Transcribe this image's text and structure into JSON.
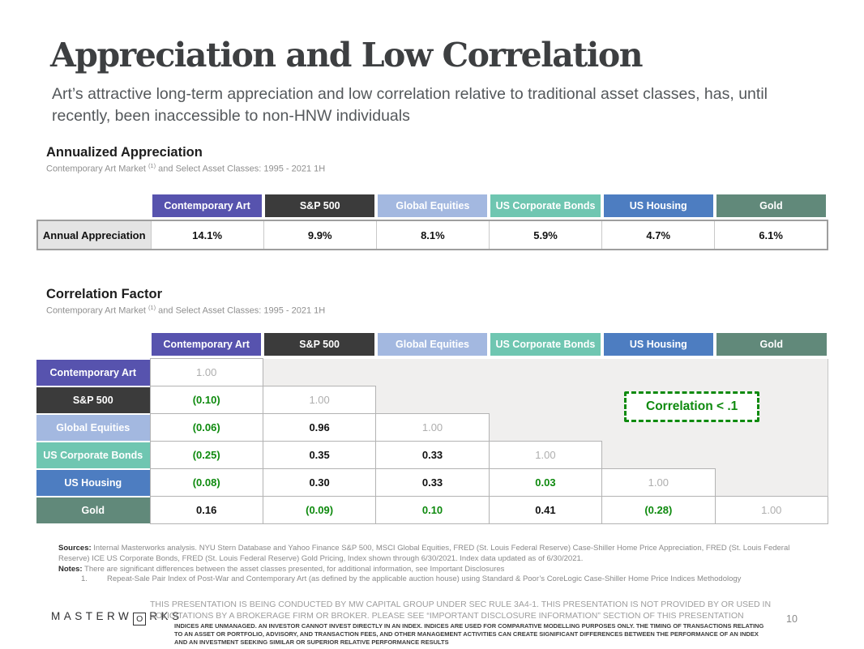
{
  "title": "Appreciation and Low Correlation",
  "subtitle": "Art’s attractive long-term appreciation and low correlation relative to traditional asset classes, has, until recently, been inaccessible to non-HNW individuals",
  "colors": {
    "purple": "#5753ae",
    "dark": "#3b3b3b",
    "lightblue": "#a3b8e0",
    "teal": "#6fc6b1",
    "blue": "#4d7dc1",
    "sage": "#61897a",
    "green_accent": "#0e8a0e",
    "diag_gray": "#aeaeae",
    "empty_bg": "#f0efee"
  },
  "columns": [
    {
      "label": "Contemporary Art",
      "key": "purple"
    },
    {
      "label": "S&P 500",
      "key": "dark"
    },
    {
      "label": "Global Equities",
      "key": "lightblue"
    },
    {
      "label": "US Corporate Bonds",
      "key": "teal"
    },
    {
      "label": "US Housing",
      "key": "blue"
    },
    {
      "label": "Gold",
      "key": "sage"
    }
  ],
  "appreciation": {
    "heading": "Annualized Appreciation",
    "subheading_prefix": "Contemporary Art Market ",
    "subheading_sup": "(1)",
    "subheading_suffix": " and Select Asset Classes: 1995 - 2021 1H",
    "row_label": "Annual Appreciation",
    "values": [
      "14.1%",
      "9.9%",
      "8.1%",
      "5.9%",
      "4.7%",
      "6.1%"
    ]
  },
  "correlation": {
    "heading": "Correlation Factor",
    "subheading_prefix": "Contemporary Art Market ",
    "subheading_sup": "(1)",
    "subheading_suffix": " and Select Asset Classes: 1995 - 2021 1H",
    "callout": "Correlation < .1",
    "rows": [
      {
        "header": "Contemporary Art",
        "key": "purple",
        "cells": [
          {
            "v": "1.00",
            "s": "diag"
          },
          {
            "s": "empty"
          },
          {
            "s": "empty"
          },
          {
            "s": "empty"
          },
          {
            "s": "empty"
          },
          {
            "s": "empty"
          }
        ]
      },
      {
        "header": "S&P 500",
        "key": "dark",
        "cells": [
          {
            "v": "(0.10)",
            "s": "neg"
          },
          {
            "v": "1.00",
            "s": "diag"
          },
          {
            "s": "empty"
          },
          {
            "s": "empty"
          },
          {
            "s": "empty"
          },
          {
            "s": "empty"
          }
        ]
      },
      {
        "header": "Global Equities",
        "key": "lightblue",
        "cells": [
          {
            "v": "(0.06)",
            "s": "neg"
          },
          {
            "v": "0.96",
            "s": "pos"
          },
          {
            "v": "1.00",
            "s": "diag"
          },
          {
            "s": "empty"
          },
          {
            "s": "empty"
          },
          {
            "s": "empty"
          }
        ]
      },
      {
        "header": "US Corporate Bonds",
        "key": "teal",
        "cells": [
          {
            "v": "(0.25)",
            "s": "neg"
          },
          {
            "v": "0.35",
            "s": "pos"
          },
          {
            "v": "0.33",
            "s": "pos"
          },
          {
            "v": "1.00",
            "s": "diag"
          },
          {
            "s": "empty"
          },
          {
            "s": "empty"
          }
        ]
      },
      {
        "header": "US Housing",
        "key": "blue",
        "cells": [
          {
            "v": "(0.08)",
            "s": "neg"
          },
          {
            "v": "0.30",
            "s": "pos"
          },
          {
            "v": "0.33",
            "s": "pos"
          },
          {
            "v": "0.03",
            "s": "neg"
          },
          {
            "v": "1.00",
            "s": "diag"
          },
          {
            "s": "empty"
          }
        ]
      },
      {
        "header": "Gold",
        "key": "sage",
        "cells": [
          {
            "v": "0.16",
            "s": "pos"
          },
          {
            "v": "(0.09)",
            "s": "neg"
          },
          {
            "v": "0.10",
            "s": "neg"
          },
          {
            "v": "0.41",
            "s": "pos"
          },
          {
            "v": "(0.28)",
            "s": "neg"
          },
          {
            "v": "1.00",
            "s": "diag"
          }
        ]
      }
    ]
  },
  "footer": {
    "sources_label": "Sources:",
    "sources_text": " Internal Masterworks analysis. NYU Stern Database and Yahoo Finance S&P 500, MSCI Global Equities, FRED (St. Louis Federal Reserve) Case-Shiller Home Price Appreciation, FRED (St. Louis Federal Reserve) ICE US Corporate Bonds, FRED (St. Louis Federal Reserve) Gold Pricing, Index shown through 6/30/2021. Index data updated as of 6/30/2021.",
    "notes_label": "Notes:",
    "notes_text": " There are significant differences between the asset classes presented, for additional information, see Important Disclosures",
    "note1_num": "1.",
    "note1_text": "Repeat-Sale Pair Index of Post-War and Contemporary Art (as defined by the applicable auction house) using Standard & Poor’s CoreLogic Case-Shiller Home Price Indices Methodology",
    "logo_part1": "MASTERW",
    "logo_boxed": "O",
    "logo_part2": "RKS",
    "disclaimer1": "THIS PRESENTATION  IS BEING CONDUCTED BY MW CAPITAL GROUP UNDER SEC RULE 3A4-1. THIS PRESENTATION  IS NOT PROVIDED BY OR USED IN SOLICITATIONS BY A BROKERAGE FIRM OR BROKER. PLEASE SEE “IMPORTANT DISCLOSURE INFORMATION” SECTION OF THIS PRESENTATION",
    "disclaimer2": "INDICES ARE UNMANAGED. AN INVESTOR CANNOT INVEST DIRECTLY IN AN INDEX. INDICES ARE USED FOR COMPARATIVE MODELLING PURPOSES ONLY. THE TIMING OF TRANSACTIONS RELATING TO AN ASSET OR PORTFOLIO, ADVISORY, AND TRANSACTION FEES, AND OTHER MANAGEMENT ACTIVITIES CAN CREATE SIGNIFICANT DIFFERENCES BETWEEN THE PERFORMANCE OF AN INDEX AND AN INVESTMENT SEEKING SIMILAR OR SUPERIOR RELATIVE PERFORMANCE RESULTS",
    "page_number": "10"
  }
}
